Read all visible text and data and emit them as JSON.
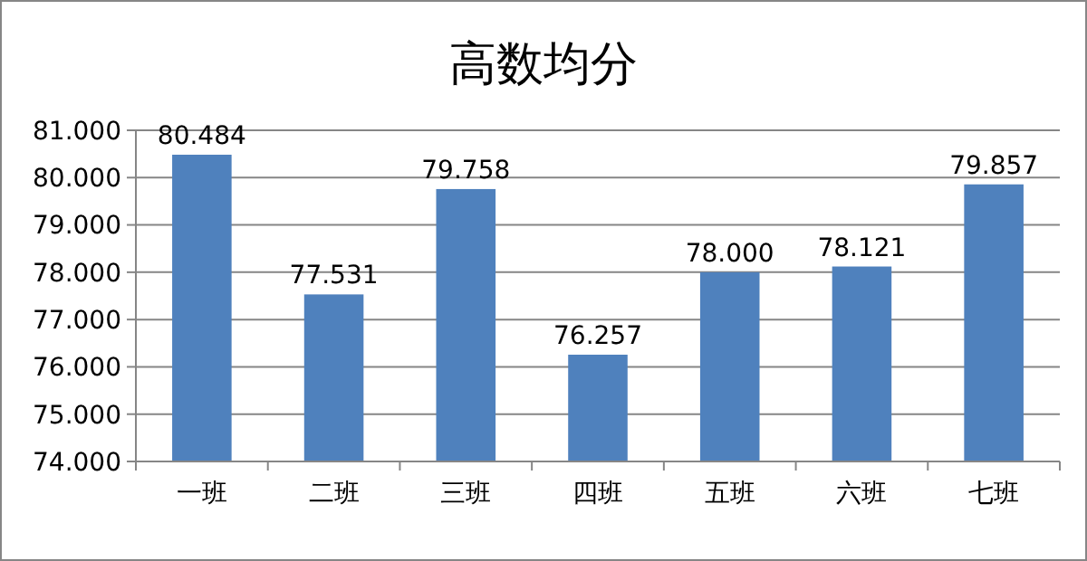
{
  "chart_data": {
    "type": "bar",
    "title": "高数均分",
    "categories": [
      "一班",
      "二班",
      "三班",
      "四班",
      "五班",
      "六班",
      "七班"
    ],
    "values": [
      80.484,
      77.531,
      79.758,
      76.257,
      78.0,
      78.121,
      79.857
    ],
    "value_labels": [
      "80.484",
      "77.531",
      "79.758",
      "76.257",
      "78.000",
      "78.121",
      "79.857"
    ],
    "color": "#4f81bd",
    "ylim": [
      74,
      81
    ],
    "yticks": [
      {
        "value": 74,
        "label": "74.000"
      },
      {
        "value": 75,
        "label": "75.000"
      },
      {
        "value": 76,
        "label": "76.000"
      },
      {
        "value": 77,
        "label": "77.000"
      },
      {
        "value": 78,
        "label": "78.000"
      },
      {
        "value": 79,
        "label": "79.000"
      },
      {
        "value": 80,
        "label": "80.000"
      },
      {
        "value": 81,
        "label": "81.000"
      }
    ],
    "grid": "y"
  }
}
